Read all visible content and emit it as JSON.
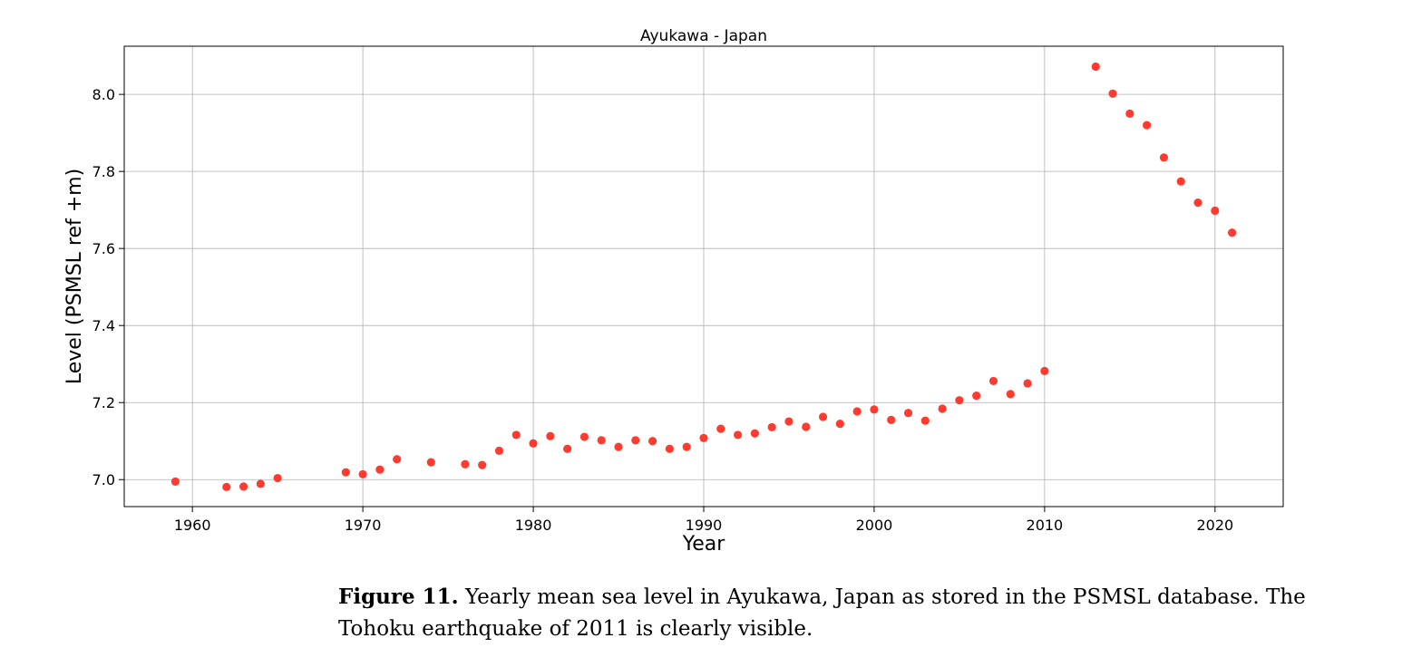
{
  "chart_data": {
    "type": "scatter",
    "title": "Ayukawa - Japan",
    "xlabel": "Year",
    "ylabel": "Level (PSMSL ref +m)",
    "xlim": [
      1956,
      2024
    ],
    "ylim": [
      6.93,
      8.125
    ],
    "xticks": [
      1960,
      1970,
      1980,
      1990,
      2000,
      2010,
      2020
    ],
    "yticks": [
      "7.0",
      "7.2",
      "7.4",
      "7.6",
      "7.8",
      "8.0"
    ],
    "grid": true,
    "marker_color": "#ff3a2f",
    "series": [
      {
        "x": [
          1959,
          1962,
          1963,
          1964,
          1965,
          1969,
          1970,
          1971,
          1972,
          1974,
          1976,
          1977,
          1978,
          1979,
          1980,
          1981,
          1982,
          1983,
          1984,
          1985,
          1986,
          1987,
          1988,
          1989,
          1990,
          1991,
          1992,
          1993,
          1994,
          1995,
          1996,
          1997,
          1998,
          1999,
          2000,
          2001,
          2002,
          2003,
          2004,
          2005,
          2006,
          2007,
          2008,
          2009,
          2010,
          2013,
          2014,
          2015,
          2016,
          2017,
          2018,
          2019,
          2020,
          2021
        ],
        "y": [
          6.995,
          6.981,
          6.982,
          6.989,
          7.004,
          7.019,
          7.014,
          7.026,
          7.053,
          7.045,
          7.04,
          7.038,
          7.075,
          7.116,
          7.094,
          7.113,
          7.08,
          7.111,
          7.102,
          7.085,
          7.102,
          7.1,
          7.08,
          7.085,
          7.108,
          7.132,
          7.116,
          7.12,
          7.136,
          7.151,
          7.137,
          7.163,
          7.145,
          7.177,
          7.182,
          7.155,
          7.173,
          7.153,
          7.184,
          7.206,
          7.218,
          7.256,
          7.222,
          7.25,
          7.282,
          8.072,
          8.002,
          7.95,
          7.92,
          7.836,
          7.774,
          7.719,
          7.698,
          7.641
        ]
      }
    ]
  },
  "caption": {
    "label": "Figure 11.",
    "text": "Yearly mean sea level in Ayukawa, Japan as stored in the PSMSL database. The Tohoku earthquake of 2011 is clearly visible."
  }
}
